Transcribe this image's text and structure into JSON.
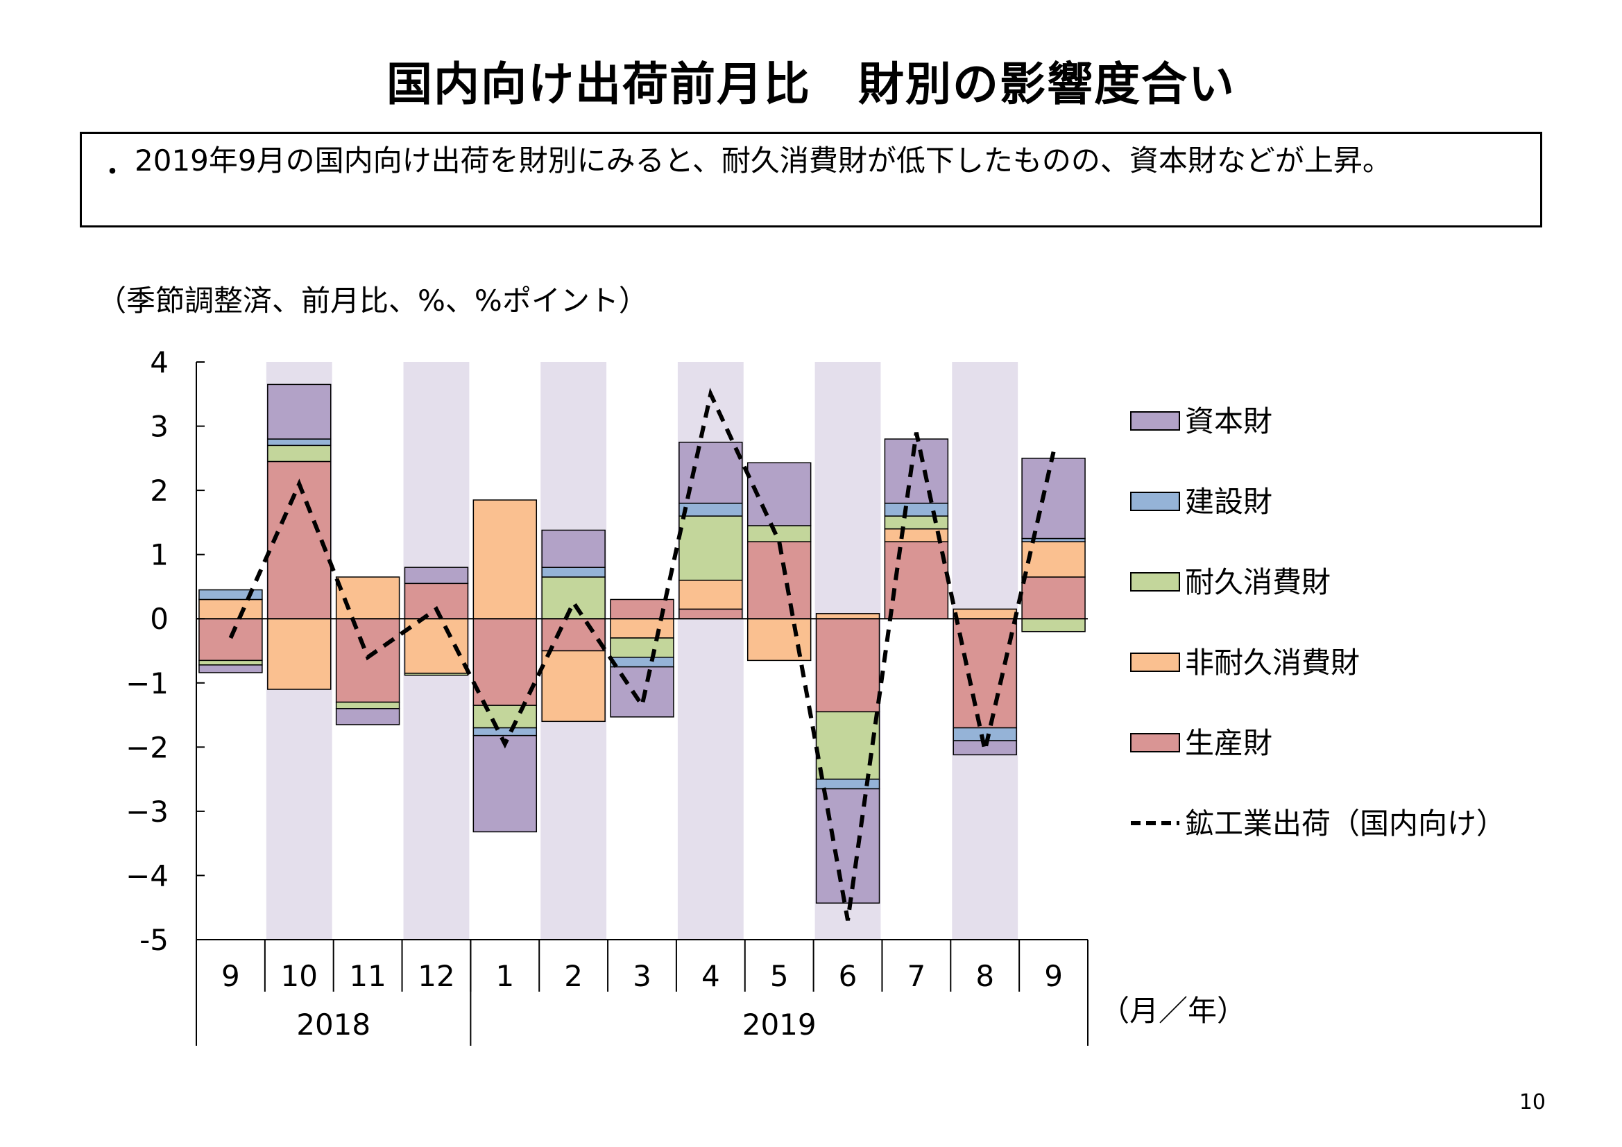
{
  "title": "国内向け出荷前月比　財別の影響度合い",
  "summary": {
    "bullet": "・",
    "text": "2019年9月の国内向け出荷を財別にみると、耐久消費財が低下したものの、資本財などが上昇。"
  },
  "unit_note": "（季節調整済、前月比、%、%ポイント）",
  "axis_unit": "（月／年）",
  "page_number": "10",
  "chart_data": {
    "type": "bar",
    "stacked": true,
    "categories": [
      "9",
      "10",
      "11",
      "12",
      "1",
      "2",
      "3",
      "4",
      "5",
      "6",
      "7",
      "8",
      "9"
    ],
    "year_groups": [
      {
        "label": "2018",
        "count": 4
      },
      {
        "label": "2019",
        "count": 9
      }
    ],
    "shaded_categories": [
      1,
      3,
      5,
      7,
      9,
      11
    ],
    "ylim": [
      -5,
      4
    ],
    "yticks": [
      4,
      3,
      2,
      1,
      0,
      -1,
      -2,
      -3,
      -4,
      -5
    ],
    "ytick_labels": [
      "4",
      "3",
      "2",
      "1",
      "0",
      "−1",
      "−2",
      "−3",
      "−4",
      "-5"
    ],
    "series": [
      {
        "name": "生産財",
        "color": "#d99594",
        "values": [
          -0.65,
          2.45,
          -1.3,
          0.55,
          -1.35,
          -0.5,
          0.3,
          0.15,
          1.2,
          -1.45,
          1.2,
          -1.7,
          0.65
        ]
      },
      {
        "name": "非耐久消費財",
        "color": "#fac090",
        "values": [
          0.3,
          -1.1,
          0.65,
          -0.85,
          1.85,
          -1.1,
          -0.3,
          0.45,
          -0.65,
          0.08,
          0.2,
          0.15,
          0.55
        ]
      },
      {
        "name": "耐久消費財",
        "color": "#c3d69b",
        "values": [
          -0.07,
          0.25,
          -0.1,
          -0.03,
          -0.35,
          0.65,
          -0.3,
          1.0,
          0.25,
          -1.05,
          0.2,
          0.0,
          -0.2
        ]
      },
      {
        "name": "建設財",
        "color": "#95b3d7",
        "values": [
          0.15,
          0.1,
          0.0,
          0.0,
          -0.12,
          0.15,
          -0.15,
          0.2,
          0.0,
          -0.15,
          0.2,
          -0.2,
          0.05
        ]
      },
      {
        "name": "資本財",
        "color": "#b2a2c7",
        "values": [
          -0.12,
          0.85,
          -0.25,
          0.25,
          -1.5,
          0.58,
          -0.78,
          0.95,
          0.98,
          -1.78,
          1.0,
          -0.22,
          1.25
        ]
      }
    ],
    "line": {
      "name": "鉱工業出荷（国内向け）",
      "style": "dashed",
      "values": [
        -0.3,
        2.1,
        -0.6,
        0.15,
        -1.95,
        0.25,
        -1.35,
        3.5,
        1.2,
        -4.7,
        2.9,
        -2.05,
        2.6
      ]
    },
    "legend_order": [
      "資本財",
      "建設財",
      "耐久消費財",
      "非耐久消費財",
      "生産財",
      "鉱工業出荷（国内向け）"
    ],
    "legend_placement": "right",
    "shading_color": "#e4dfec"
  }
}
